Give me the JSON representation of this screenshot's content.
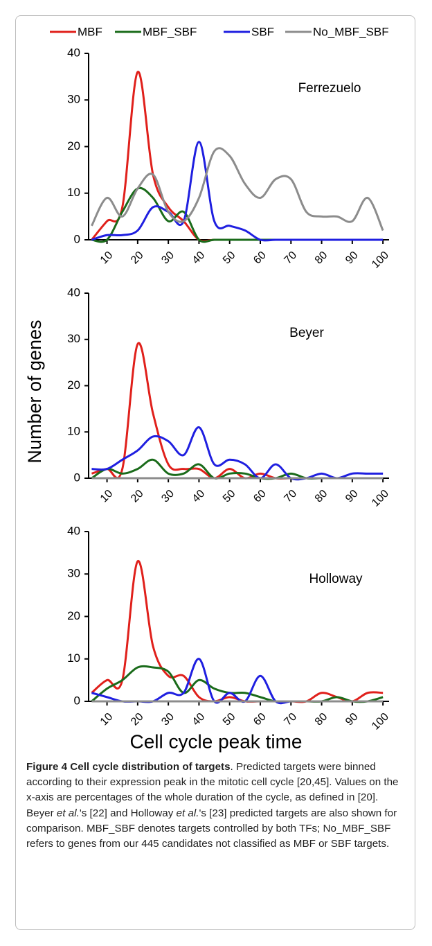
{
  "chart_data": [
    {
      "type": "line",
      "title": "Ferrezuelo",
      "x": [
        5,
        10,
        15,
        20,
        25,
        30,
        35,
        40,
        45,
        50,
        55,
        60,
        65,
        70,
        75,
        80,
        85,
        90,
        95,
        100
      ],
      "xlim": [
        4,
        102
      ],
      "xticks": [
        10,
        20,
        30,
        40,
        50,
        60,
        70,
        80,
        90,
        100
      ],
      "ylim": [
        0,
        40
      ],
      "yticks": [
        0,
        10,
        20,
        30,
        40
      ],
      "series": [
        {
          "name": "MBF",
          "color": "#e0201b",
          "values": [
            0,
            4,
            7,
            36,
            14,
            7,
            4,
            0,
            0,
            0,
            0,
            0,
            0,
            0,
            0,
            0,
            0,
            0,
            0,
            0
          ]
        },
        {
          "name": "MBF_SBF",
          "color": "#1a6b1a",
          "values": [
            0,
            0,
            6,
            11,
            9,
            4,
            6,
            0,
            0,
            0,
            0,
            0,
            0,
            0,
            0,
            0,
            0,
            0,
            0,
            0
          ]
        },
        {
          "name": "SBF",
          "color": "#1f1fe0",
          "values": [
            0,
            1,
            1,
            2,
            7,
            6,
            4,
            21,
            4,
            3,
            2,
            0,
            0,
            0,
            0,
            0,
            0,
            0,
            0,
            0
          ]
        },
        {
          "name": "No_MBF_SBF",
          "color": "#8c8c8c",
          "values": [
            3,
            9,
            5,
            11,
            14,
            6,
            4,
            9,
            19,
            18,
            12,
            9,
            13,
            13,
            6,
            5,
            5,
            4,
            9,
            2
          ]
        }
      ]
    },
    {
      "type": "line",
      "title": "Beyer",
      "ylabel": "Number of genes",
      "x": [
        5,
        10,
        15,
        20,
        25,
        30,
        35,
        40,
        45,
        50,
        55,
        60,
        65,
        70,
        75,
        80,
        85,
        90,
        95,
        100
      ],
      "xlim": [
        4,
        102
      ],
      "xticks": [
        10,
        20,
        30,
        40,
        50,
        60,
        70,
        80,
        90,
        100
      ],
      "ylim": [
        0,
        40
      ],
      "yticks": [
        0,
        10,
        20,
        30,
        40
      ],
      "series": [
        {
          "color": "#e0201b",
          "values": [
            1,
            2,
            2,
            29,
            14,
            3,
            2,
            2,
            0,
            2,
            0,
            1,
            0,
            0,
            0,
            0,
            0,
            0,
            0,
            0
          ]
        },
        {
          "color": "#1a6b1a",
          "values": [
            0,
            2,
            1,
            2,
            4,
            1,
            1,
            3,
            0,
            1,
            1,
            0,
            0,
            1,
            0,
            0,
            0,
            0,
            0,
            0
          ]
        },
        {
          "color": "#1f1fe0",
          "values": [
            2,
            2,
            4,
            6,
            9,
            8,
            5,
            11,
            3,
            4,
            3,
            0,
            3,
            0,
            0,
            1,
            0,
            1,
            1,
            1
          ]
        },
        {
          "color": "#8c8c8c",
          "values": [
            0,
            0,
            0,
            0,
            0,
            0,
            0,
            0,
            0,
            0,
            0,
            0,
            0,
            0,
            0,
            0,
            0,
            0,
            0,
            0
          ]
        }
      ]
    },
    {
      "type": "line",
      "title": "Holloway",
      "xlabel": "Cell cycle peak time",
      "x": [
        5,
        10,
        15,
        20,
        25,
        30,
        35,
        40,
        45,
        50,
        55,
        60,
        65,
        70,
        75,
        80,
        85,
        90,
        95,
        100
      ],
      "xlim": [
        4,
        102
      ],
      "xticks": [
        10,
        20,
        30,
        40,
        50,
        60,
        70,
        80,
        90,
        100
      ],
      "ylim": [
        0,
        40
      ],
      "yticks": [
        0,
        10,
        20,
        30,
        40
      ],
      "series": [
        {
          "color": "#e0201b",
          "values": [
            2,
            5,
            5,
            33,
            13,
            6,
            6,
            1,
            0,
            1,
            0,
            0,
            0,
            0,
            0,
            2,
            1,
            0,
            2,
            2
          ]
        },
        {
          "color": "#1a6b1a",
          "values": [
            0,
            3,
            5,
            8,
            8,
            7,
            2,
            5,
            3,
            2,
            2,
            1,
            0,
            0,
            0,
            0,
            1,
            0,
            0,
            1
          ]
        },
        {
          "color": "#1f1fe0",
          "values": [
            2,
            1,
            0,
            0,
            0,
            2,
            2,
            10,
            0,
            2,
            0,
            6,
            0,
            0,
            0,
            0,
            0,
            0,
            0,
            0
          ]
        },
        {
          "color": "#8c8c8c",
          "values": [
            0,
            0,
            0,
            0,
            0,
            0,
            0,
            0,
            0,
            0,
            0,
            0,
            0,
            0,
            0,
            0,
            0,
            0,
            0,
            0
          ]
        }
      ]
    }
  ],
  "caption": {
    "label": "Figure 4 Cell cycle distribution of targets",
    "body": [
      ". Predicted targets were binned according to their expression peak in the mitotic cell cycle [20,45]. Values on the x-axis are percentages of the whole duration of the cycle, as defined in [20]. Beyer ",
      {
        "text": "et al.",
        "italic": true
      },
      "'s [22] and Holloway ",
      {
        "text": "et al.",
        "italic": true
      },
      "'s [23] predicted targets are also shown for comparison. MBF_SBF denotes targets controlled by both TFs; No_MBF_SBF refers to genes from our 445 candidates not classified as MBF or SBF targets."
    ]
  }
}
